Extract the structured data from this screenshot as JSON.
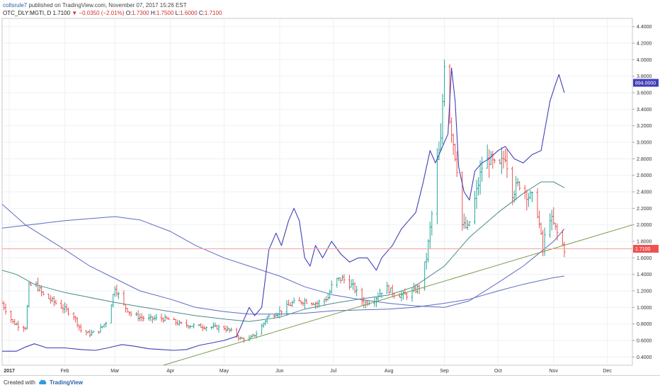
{
  "header": {
    "author": "coltsrule7",
    "published": "published on TradingView.com, November 07, 2017 15:26 EST",
    "symbol": "OTC_DLY:MGTI, D",
    "last": "1.7100",
    "change": "−0.0350 (−2.01%)",
    "o_label": "O:",
    "o": "1.7300",
    "h_label": "H:",
    "h": "1.7500",
    "l_label": "L:",
    "l": "1.6000",
    "c_label": "C:",
    "c": "1.7100"
  },
  "footer": {
    "created_with": "Created with",
    "brand": "TradingView"
  },
  "colors": {
    "up": "#26a69a",
    "down": "#ef5350",
    "volume_line": "#3f3fb8",
    "ma_long": "#5c6bc0",
    "ma_short": "#4a8a8a",
    "trendline": "#7a9a50",
    "price_line": "#f4a0a0"
  },
  "chart_data": {
    "type": "ohlc-bar",
    "y_range": [
      0.3,
      4.5
    ],
    "y_ticks": [
      "0.4000",
      "0.6000",
      "0.8000",
      "1.0000",
      "1.2000",
      "1.4000",
      "1.6000",
      "1.8000",
      "2.0000",
      "2.2000",
      "2.4000",
      "2.6000",
      "2.8000",
      "3.0000",
      "3.2000",
      "3.4000",
      "3.6000",
      "3.8000",
      "4.0000",
      "4.2000",
      "4.4000"
    ],
    "x_range": [
      "2016-12-28",
      "2017-12-15"
    ],
    "x_ticks": [
      {
        "date": "2017-01-01",
        "label": "2017",
        "bold": true
      },
      {
        "date": "2017-02-01",
        "label": "Feb"
      },
      {
        "date": "2017-03-01",
        "label": "Mar"
      },
      {
        "date": "2017-04-01",
        "label": "Apr"
      },
      {
        "date": "2017-05-01",
        "label": "May"
      },
      {
        "date": "2017-06-01",
        "label": "Jun"
      },
      {
        "date": "2017-07-01",
        "label": "Jul"
      },
      {
        "date": "2017-08-01",
        "label": "Aug"
      },
      {
        "date": "2017-09-01",
        "label": "Sep"
      },
      {
        "date": "2017-10-01",
        "label": "Oct"
      },
      {
        "date": "2017-11-01",
        "label": "Nov"
      },
      {
        "date": "2017-12-01",
        "label": "Dec"
      }
    ],
    "price_path": [
      [
        "2016-12-28",
        1.05
      ],
      [
        "2017-01-03",
        0.82
      ],
      [
        "2017-01-06",
        0.78
      ],
      [
        "2017-01-10",
        0.76
      ],
      [
        "2017-01-12",
        1.25
      ],
      [
        "2017-01-15",
        1.3
      ],
      [
        "2017-01-20",
        1.15
      ],
      [
        "2017-01-25",
        1.08
      ],
      [
        "2017-02-01",
        0.98
      ],
      [
        "2017-02-06",
        0.9
      ],
      [
        "2017-02-10",
        0.72
      ],
      [
        "2017-02-15",
        0.68
      ],
      [
        "2017-02-20",
        0.72
      ],
      [
        "2017-02-25",
        0.85
      ],
      [
        "2017-03-01",
        1.25
      ],
      [
        "2017-03-05",
        1.05
      ],
      [
        "2017-03-10",
        0.92
      ],
      [
        "2017-03-15",
        0.88
      ],
      [
        "2017-03-20",
        0.86
      ],
      [
        "2017-03-25",
        0.87
      ],
      [
        "2017-04-01",
        0.85
      ],
      [
        "2017-04-06",
        0.8
      ],
      [
        "2017-04-12",
        0.78
      ],
      [
        "2017-04-18",
        0.77
      ],
      [
        "2017-04-25",
        0.76
      ],
      [
        "2017-05-01",
        0.75
      ],
      [
        "2017-05-06",
        0.7
      ],
      [
        "2017-05-10",
        0.62
      ],
      [
        "2017-05-15",
        0.62
      ],
      [
        "2017-05-20",
        0.7
      ],
      [
        "2017-05-25",
        0.88
      ],
      [
        "2017-06-01",
        0.95
      ],
      [
        "2017-06-08",
        1.05
      ],
      [
        "2017-06-15",
        1.08
      ],
      [
        "2017-06-22",
        1.05
      ],
      [
        "2017-06-28",
        1.12
      ],
      [
        "2017-07-01",
        1.32
      ],
      [
        "2017-07-06",
        1.35
      ],
      [
        "2017-07-12",
        1.25
      ],
      [
        "2017-07-18",
        1.05
      ],
      [
        "2017-07-24",
        1.1
      ],
      [
        "2017-07-30",
        1.25
      ],
      [
        "2017-08-05",
        1.15
      ],
      [
        "2017-08-12",
        1.15
      ],
      [
        "2017-08-18",
        1.25
      ],
      [
        "2017-08-22",
        1.6
      ],
      [
        "2017-08-26",
        2.3
      ],
      [
        "2017-08-28",
        2.75
      ],
      [
        "2017-08-30",
        3.0
      ],
      [
        "2017-09-01",
        4.0
      ],
      [
        "2017-09-04",
        3.3
      ],
      [
        "2017-09-06",
        3.0
      ],
      [
        "2017-09-08",
        2.7
      ],
      [
        "2017-09-11",
        2.0
      ],
      [
        "2017-09-14",
        1.95
      ],
      [
        "2017-09-18",
        2.3
      ],
      [
        "2017-09-22",
        2.7
      ],
      [
        "2017-09-26",
        2.8
      ],
      [
        "2017-10-01",
        2.65
      ],
      [
        "2017-10-05",
        2.85
      ],
      [
        "2017-10-09",
        2.4
      ],
      [
        "2017-10-13",
        2.5
      ],
      [
        "2017-10-18",
        2.35
      ],
      [
        "2017-10-22",
        2.3
      ],
      [
        "2017-10-26",
        1.7
      ],
      [
        "2017-10-29",
        2.15
      ],
      [
        "2017-11-01",
        2.0
      ],
      [
        "2017-11-04",
        1.85
      ],
      [
        "2017-11-07",
        1.71
      ]
    ],
    "volume_line": [
      [
        "2016-12-28",
        0.47
      ],
      [
        "2017-01-05",
        0.47
      ],
      [
        "2017-01-10",
        0.52
      ],
      [
        "2017-01-15",
        0.56
      ],
      [
        "2017-01-22",
        0.51
      ],
      [
        "2017-02-01",
        0.51
      ],
      [
        "2017-02-10",
        0.49
      ],
      [
        "2017-02-18",
        0.48
      ],
      [
        "2017-02-25",
        0.51
      ],
      [
        "2017-03-05",
        0.55
      ],
      [
        "2017-03-12",
        0.53
      ],
      [
        "2017-03-20",
        0.5
      ],
      [
        "2017-03-27",
        0.49
      ],
      [
        "2017-04-03",
        0.48
      ],
      [
        "2017-04-10",
        0.49
      ],
      [
        "2017-04-17",
        0.54
      ],
      [
        "2017-04-24",
        0.57
      ],
      [
        "2017-05-01",
        0.6
      ],
      [
        "2017-05-08",
        0.65
      ],
      [
        "2017-05-15",
        1.0
      ],
      [
        "2017-05-18",
        0.9
      ],
      [
        "2017-05-22",
        1.0
      ],
      [
        "2017-05-26",
        1.7
      ],
      [
        "2017-05-30",
        1.9
      ],
      [
        "2017-06-02",
        1.75
      ],
      [
        "2017-06-06",
        2.05
      ],
      [
        "2017-06-09",
        2.2
      ],
      [
        "2017-06-12",
        2.05
      ],
      [
        "2017-06-15",
        1.6
      ],
      [
        "2017-06-18",
        1.5
      ],
      [
        "2017-06-21",
        1.75
      ],
      [
        "2017-06-25",
        1.6
      ],
      [
        "2017-06-30",
        1.8
      ],
      [
        "2017-07-05",
        1.65
      ],
      [
        "2017-07-10",
        1.55
      ],
      [
        "2017-07-15",
        1.6
      ],
      [
        "2017-07-20",
        1.6
      ],
      [
        "2017-07-25",
        1.45
      ],
      [
        "2017-07-28",
        1.6
      ],
      [
        "2017-08-03",
        1.75
      ],
      [
        "2017-08-08",
        1.95
      ],
      [
        "2017-08-12",
        2.05
      ],
      [
        "2017-08-16",
        2.15
      ],
      [
        "2017-08-20",
        2.5
      ],
      [
        "2017-08-24",
        2.9
      ],
      [
        "2017-08-27",
        2.75
      ],
      [
        "2017-08-31",
        2.95
      ],
      [
        "2017-09-03",
        3.1
      ],
      [
        "2017-09-05",
        3.9
      ],
      [
        "2017-09-07",
        3.5
      ],
      [
        "2017-09-09",
        2.7
      ],
      [
        "2017-09-12",
        2.4
      ],
      [
        "2017-09-15",
        2.3
      ],
      [
        "2017-09-18",
        2.65
      ],
      [
        "2017-09-22",
        2.75
      ],
      [
        "2017-09-26",
        2.8
      ],
      [
        "2017-10-01",
        2.9
      ],
      [
        "2017-10-05",
        2.95
      ],
      [
        "2017-10-10",
        2.8
      ],
      [
        "2017-10-15",
        2.75
      ],
      [
        "2017-10-20",
        2.85
      ],
      [
        "2017-10-25",
        2.9
      ],
      [
        "2017-10-30",
        3.5
      ],
      [
        "2017-11-02",
        3.7
      ],
      [
        "2017-11-04",
        3.82
      ],
      [
        "2017-11-07",
        3.6
      ]
    ],
    "ma_long": [
      [
        "2016-12-28",
        1.96
      ],
      [
        "2017-02-01",
        2.05
      ],
      [
        "2017-03-01",
        2.1
      ],
      [
        "2017-03-15",
        2.06
      ],
      [
        "2017-04-01",
        1.92
      ],
      [
        "2017-04-15",
        1.75
      ],
      [
        "2017-05-01",
        1.6
      ],
      [
        "2017-05-15",
        1.5
      ],
      [
        "2017-06-01",
        1.38
      ],
      [
        "2017-06-15",
        1.25
      ],
      [
        "2017-07-01",
        1.15
      ],
      [
        "2017-07-15",
        1.1
      ],
      [
        "2017-08-01",
        1.05
      ],
      [
        "2017-08-15",
        1.02
      ],
      [
        "2017-09-01",
        1.0
      ],
      [
        "2017-09-15",
        1.08
      ],
      [
        "2017-10-01",
        1.3
      ],
      [
        "2017-10-15",
        1.5
      ],
      [
        "2017-11-01",
        1.8
      ],
      [
        "2017-11-07",
        1.95
      ]
    ],
    "ma_short": [
      [
        "2016-12-28",
        1.45
      ],
      [
        "2017-01-05",
        1.4
      ],
      [
        "2017-01-15",
        1.28
      ],
      [
        "2017-02-01",
        1.18
      ],
      [
        "2017-02-15",
        1.12
      ],
      [
        "2017-03-01",
        1.06
      ],
      [
        "2017-03-15",
        1.01
      ],
      [
        "2017-04-01",
        0.95
      ],
      [
        "2017-04-15",
        0.9
      ],
      [
        "2017-05-01",
        0.86
      ],
      [
        "2017-05-15",
        0.83
      ],
      [
        "2017-06-01",
        0.88
      ],
      [
        "2017-06-15",
        0.98
      ],
      [
        "2017-07-01",
        1.05
      ],
      [
        "2017-07-15",
        1.1
      ],
      [
        "2017-08-01",
        1.15
      ],
      [
        "2017-08-15",
        1.25
      ],
      [
        "2017-09-01",
        1.5
      ],
      [
        "2017-09-15",
        1.85
      ],
      [
        "2017-10-01",
        2.15
      ],
      [
        "2017-10-15",
        2.38
      ],
      [
        "2017-10-25",
        2.52
      ],
      [
        "2017-11-01",
        2.52
      ],
      [
        "2017-11-07",
        2.45
      ]
    ],
    "ma_decline": [
      [
        "2016-12-28",
        2.25
      ],
      [
        "2017-01-10",
        2.0
      ],
      [
        "2017-02-01",
        1.7
      ],
      [
        "2017-02-15",
        1.5
      ],
      [
        "2017-03-01",
        1.35
      ],
      [
        "2017-03-15",
        1.2
      ],
      [
        "2017-04-01",
        1.1
      ],
      [
        "2017-04-15",
        1.0
      ],
      [
        "2017-05-01",
        0.95
      ],
      [
        "2017-05-15",
        0.92
      ],
      [
        "2017-06-01",
        0.92
      ],
      [
        "2017-06-15",
        0.93
      ],
      [
        "2017-07-01",
        0.96
      ],
      [
        "2017-08-01",
        0.98
      ],
      [
        "2017-08-15",
        1.0
      ],
      [
        "2017-09-01",
        1.05
      ],
      [
        "2017-09-15",
        1.1
      ],
      [
        "2017-10-01",
        1.2
      ],
      [
        "2017-10-15",
        1.28
      ],
      [
        "2017-11-01",
        1.36
      ],
      [
        "2017-11-07",
        1.38
      ]
    ],
    "trendline": [
      [
        "2017-03-28",
        0.3
      ],
      [
        "2017-12-15",
        2.0
      ]
    ],
    "last_price": 1.71,
    "last_price_label": "1.7100",
    "volume_label": "894.0000",
    "volume_label_value": 3.72
  }
}
